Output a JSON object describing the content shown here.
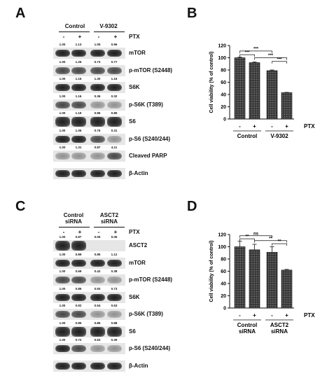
{
  "panelA": {
    "letter": "A",
    "groups": [
      "Control",
      "V-9302"
    ],
    "treatment_label": "PTX",
    "signs": [
      "-",
      "+",
      "-",
      "+"
    ],
    "rows": [
      {
        "label": "mTOR",
        "values": [
          "1.00",
          "1.13",
          "1.05",
          "0.96"
        ]
      },
      {
        "label": "p-mTOR (S2448)",
        "values": [
          "1.00",
          "1.26",
          "0.73",
          "0.77"
        ]
      },
      {
        "label": "S6K",
        "values": [
          "1.00",
          "1.16",
          "1.30",
          "1.16"
        ]
      },
      {
        "label": "p-S6K (T389)",
        "values": [
          "1.00",
          "1.16",
          "0.36",
          "0.32"
        ]
      },
      {
        "label": "S6",
        "values": [
          "1.00",
          "1.19",
          "0.96",
          "0.85"
        ]
      },
      {
        "label": "p-S6 (S240/244)",
        "values": [
          "1.00",
          "1.06",
          "0.76",
          "0.31"
        ]
      },
      {
        "label": "Cleaved PARP",
        "values": [
          "1.00",
          "1.31",
          "0.87",
          "4.11"
        ]
      },
      {
        "label": "β-Actin",
        "values": []
      }
    ]
  },
  "panelB": {
    "letter": "B",
    "treatment_label": "PTX",
    "group_labels": [
      "Control",
      "V-9302"
    ],
    "signs": [
      "-",
      "+",
      "-",
      "+"
    ],
    "significance": [
      "***",
      "***",
      "***",
      "***"
    ]
  },
  "panelC": {
    "letter": "C",
    "groups": [
      "Control\nsiRNA",
      "ASCT2\nsiRNA"
    ],
    "group_line1": [
      "Control",
      "ASCT2"
    ],
    "group_line2": [
      "siRNA",
      "siRNA"
    ],
    "treatment_label": "PTX",
    "signs": [
      "-",
      "+",
      "-",
      "+"
    ],
    "rows": [
      {
        "label": "ASCT2",
        "values": [
          "1.00",
          "0.87",
          "0.05",
          "0.05"
        ]
      },
      {
        "label": "mTOR",
        "values": [
          "1.00",
          "0.89",
          "0.85",
          "1.12"
        ]
      },
      {
        "label": "p-mTOR (S2448)",
        "values": [
          "1.00",
          "0.69",
          "0.42",
          "0.38"
        ]
      },
      {
        "label": "S6K",
        "values": [
          "1.00",
          "0.86",
          "0.93",
          "0.73"
        ]
      },
      {
        "label": "p-S6K (T389)",
        "values": [
          "1.00",
          "0.92",
          "0.54",
          "0.63"
        ]
      },
      {
        "label": "S6",
        "values": [
          "1.00",
          "0.85",
          "0.86",
          "0.88"
        ]
      },
      {
        "label": "p-S6 (S240/244)",
        "values": [
          "1.00",
          "0.72",
          "0.53",
          "0.39"
        ]
      },
      {
        "label": "β-Actin",
        "values": []
      }
    ]
  },
  "panelD": {
    "letter": "D",
    "treatment_label": "PTX",
    "group_line1": [
      "Control",
      "ASCT2"
    ],
    "group_line2": [
      "siRNA",
      "siRNA"
    ],
    "signs": [
      "-",
      "+",
      "-",
      "+"
    ],
    "significance": [
      "ns",
      "**",
      "**",
      "**"
    ]
  },
  "chart_data": [
    {
      "type": "bar",
      "panel": "B",
      "categories": [
        "-",
        "+",
        "-",
        "+"
      ],
      "group_labels": [
        "Control",
        "V-9302"
      ],
      "values": [
        100,
        92,
        79,
        43
      ],
      "errors": [
        1,
        1,
        1,
        0.5
      ],
      "ylabel": "Cell viability (% of control)",
      "ylim": [
        0,
        120
      ],
      "yticks": [
        0,
        20,
        40,
        60,
        80,
        100,
        120
      ],
      "xlabel": "PTX",
      "significance": [
        "***",
        "***",
        "***",
        "***"
      ]
    },
    {
      "type": "bar",
      "panel": "D",
      "categories": [
        "-",
        "+",
        "-",
        "+"
      ],
      "group_labels": [
        "Control siRNA",
        "ASCT2 siRNA"
      ],
      "values": [
        100,
        95,
        91,
        62
      ],
      "errors": [
        9,
        9,
        9,
        1
      ],
      "ylabel": "Cell viability (% of control)",
      "ylim": [
        0,
        120
      ],
      "yticks": [
        0,
        20,
        40,
        60,
        80,
        100,
        120
      ],
      "xlabel": "PTX",
      "significance": [
        "ns",
        "**",
        "**",
        "**"
      ]
    }
  ]
}
